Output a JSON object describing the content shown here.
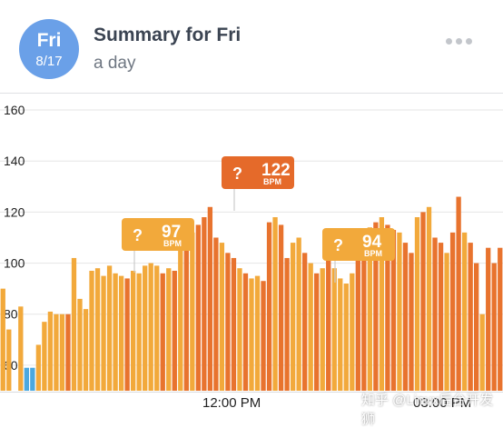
{
  "header": {
    "day_of_week": "Fri",
    "date": "8/17",
    "title": "Summary for Fri",
    "subtitle": "a day"
  },
  "colors": {
    "badge": "#6aa0e8",
    "bar_light": "#f2a93b",
    "bar_dark": "#e8732e",
    "bar_low": "#4aa8df",
    "callout_light": "#f2a93b",
    "callout_dark": "#e56a2a"
  },
  "chart_data": {
    "type": "bar",
    "ylim": [
      50,
      165
    ],
    "yticks": [
      "60",
      "80",
      "100",
      "120",
      "140",
      "160"
    ],
    "x_ticks": [
      "12:00 PM",
      "03:00 PM"
    ],
    "callouts": [
      {
        "question": "?",
        "value": "97",
        "unit": "BPM"
      },
      {
        "question": "?",
        "value": "122",
        "unit": "BPM"
      },
      {
        "question": "?",
        "value": "94",
        "unit": "BPM"
      }
    ],
    "values": [
      90,
      74,
      50,
      83,
      59,
      59,
      68,
      77,
      81,
      80,
      80,
      80,
      102,
      86,
      82,
      97,
      98,
      95,
      99,
      96,
      95,
      94,
      97,
      96,
      99,
      100,
      99,
      96,
      98,
      97,
      107,
      110,
      112,
      115,
      118,
      122,
      110,
      108,
      104,
      102,
      98,
      96,
      94,
      95,
      93,
      116,
      118,
      115,
      102,
      108,
      110,
      104,
      100,
      96,
      98,
      103,
      98,
      94,
      92,
      96,
      106,
      112,
      114,
      116,
      118,
      115,
      113,
      112,
      108,
      104,
      118,
      120,
      122,
      110,
      108,
      104,
      112,
      126,
      112,
      108,
      100,
      80,
      106,
      100,
      106
    ],
    "dark": [
      0,
      0,
      0,
      0,
      0,
      0,
      0,
      0,
      0,
      0,
      0,
      1,
      0,
      0,
      0,
      0,
      0,
      0,
      0,
      0,
      0,
      1,
      0,
      0,
      0,
      0,
      0,
      1,
      0,
      1,
      0,
      1,
      0,
      1,
      1,
      1,
      1,
      0,
      1,
      1,
      0,
      1,
      0,
      0,
      1,
      1,
      0,
      1,
      1,
      0,
      0,
      1,
      0,
      1,
      0,
      1,
      0,
      0,
      0,
      0,
      1,
      1,
      0,
      1,
      0,
      1,
      1,
      0,
      1,
      1,
      0,
      1,
      0,
      1,
      1,
      0,
      1,
      1,
      0,
      1,
      1,
      0,
      1,
      1,
      1
    ]
  },
  "footer": {
    "watermark": "知乎 @Linux后台开发狮"
  }
}
